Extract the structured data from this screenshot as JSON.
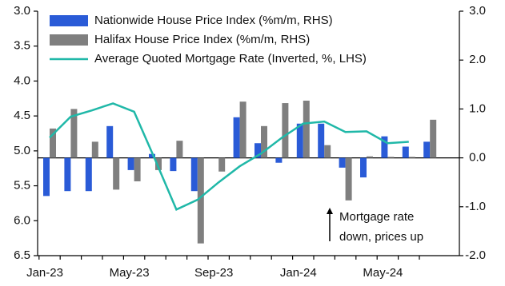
{
  "chart_data": {
    "type": "bar-line",
    "categories": [
      "Jan-23",
      null,
      null,
      null,
      "May-23",
      null,
      null,
      null,
      "Sep-23",
      null,
      null,
      null,
      "Jan-24",
      null,
      null,
      null,
      "May-24",
      null,
      null
    ],
    "series": [
      {
        "name": "Nationwide House Price Index (%m/m, RHS)",
        "color": "#2a5bd7",
        "kind": "bar",
        "axis": "y2",
        "values": [
          -0.78,
          -0.68,
          -0.68,
          0.65,
          -0.25,
          0.08,
          -0.27,
          -0.68,
          0.0,
          0.83,
          0.3,
          -0.1,
          0.7,
          0.7,
          -0.2,
          -0.4,
          0.44,
          0.23,
          0.33
        ]
      },
      {
        "name": "Halifax House Price Index (%m/m, RHS)",
        "color": "#7f7f7f",
        "kind": "bar",
        "axis": "y2",
        "values": [
          0.6,
          1.0,
          0.33,
          -0.65,
          -0.48,
          -0.25,
          0.35,
          -1.75,
          -0.28,
          1.15,
          0.65,
          1.12,
          1.17,
          0.26,
          -0.87,
          0.03,
          0.02,
          0.02,
          0.78
        ]
      },
      {
        "name": "Average Quoted Mortgage Rate (Inverted, %, LHS)",
        "color": "#20b8a8",
        "kind": "line",
        "values": [
          4.81,
          4.51,
          4.42,
          4.32,
          4.44,
          5.13,
          5.84,
          5.7,
          5.45,
          5.22,
          5.04,
          4.81,
          4.61,
          4.58,
          4.73,
          4.72,
          4.89,
          4.87,
          null
        ]
      }
    ],
    "ylim": [
      3.0,
      6.5
    ],
    "y_inverted": true,
    "yticks": [
      {
        "value": 3.0,
        "label": "3.0"
      },
      3.5,
      {
        "value": 4.0,
        "label": "4.0"
      },
      4.5,
      {
        "value": 5.0,
        "label": "5.0"
      },
      5.5,
      {
        "value": 6.0,
        "label": "6.0"
      },
      6.5
    ],
    "y2lim": [
      -2.0,
      3.0
    ],
    "y2ticks": [
      {
        "value": 3.0,
        "label": "3.0"
      },
      {
        "value": 2.0,
        "label": "2.0"
      },
      {
        "value": 1.0,
        "label": "1.0"
      },
      {
        "value": 0.0,
        "label": "0.0"
      },
      {
        "value": -1.0,
        "label": "-1.0"
      },
      {
        "value": -2.0,
        "label": "-2.0"
      }
    ],
    "annotation": [
      "Mortgage rate",
      "down, prices up"
    ],
    "legend": "top-left",
    "grid": false
  }
}
